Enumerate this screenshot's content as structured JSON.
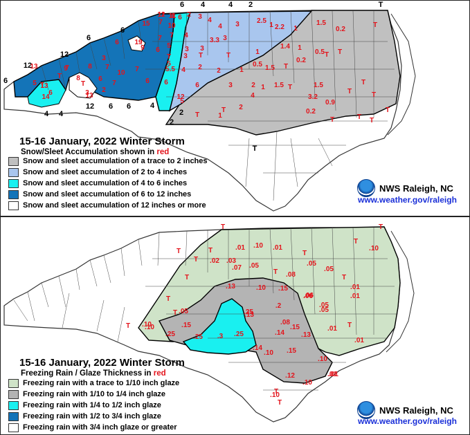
{
  "snow_panel": {
    "title": "15-16 January, 2022 Winter Storm",
    "subtitle_prefix": "Snow/Sleet Accumulation shown in",
    "subtitle_color_word": "red",
    "legend": [
      {
        "label": "Snow and sleet accumulation of a trace to 2 inches",
        "color": "#c0c0c0"
      },
      {
        "label": "Snow and sleet accumulation of 2 to 4 inches",
        "color": "#a9c6ee"
      },
      {
        "label": "Snow and sleet accumulation of 4 to 6 inches",
        "color": "#19f0f0"
      },
      {
        "label": "Snow and sleet accumulation of 6 to 12 inches",
        "color": "#1474b8"
      },
      {
        "label": "Snow and sleet accumulation of 12 inches or more",
        "color": "#ffffff"
      }
    ],
    "contour_labels": [
      "6",
      "4",
      "4",
      "2",
      "T",
      "6",
      "6",
      "12",
      "12",
      "6",
      "4",
      "4",
      "6",
      "12",
      "6",
      "4",
      "2",
      "2",
      "T"
    ],
    "values": [
      "11",
      "11",
      "6",
      "2",
      "3",
      "4",
      "4",
      "3",
      "2.5",
      "1",
      "1.5",
      "0.2",
      "T",
      "15",
      "7",
      "10",
      "19",
      "7",
      "7",
      "4",
      "3.3",
      "3",
      "2.2",
      "1",
      "6",
      "9",
      "6",
      "5",
      "3",
      "3",
      "1",
      "1.4",
      "1",
      "0.5",
      "T",
      "7",
      "3",
      "T",
      "13",
      "9",
      "8",
      "7",
      "5.5",
      "4",
      "2",
      "1",
      "T",
      "0.2",
      "T",
      "8",
      "10",
      "7",
      "6",
      "3",
      "2",
      "0.5",
      "1.5",
      "1",
      "T",
      "T",
      "13",
      "6",
      "5",
      "7",
      "6",
      "6",
      "3",
      "2",
      "1.5",
      "1.5",
      "T",
      "T",
      "T",
      "T",
      "3",
      "2",
      "13",
      "14",
      "12",
      "5",
      "4",
      "3.2",
      "0.9",
      "T",
      "T",
      "T",
      "T",
      "2",
      "1",
      "0.2",
      "T",
      "T",
      "T",
      "T",
      "T",
      "6",
      "5",
      "12",
      "4"
    ],
    "nws_label": "NWS Raleigh, NC",
    "url": "www.weather.gov/raleigh"
  },
  "ice_panel": {
    "title": "15-16 January, 2022 Winter Storm",
    "subtitle_prefix": "Freezing Rain / Glaze Thickness in",
    "subtitle_color_word": "red",
    "legend": [
      {
        "label": "Freezing rain with a trace to 1/10 inch glaze",
        "color": "#cfe3c8"
      },
      {
        "label": "Freezing rain with 1/10 to 1/4 inch glaze",
        "color": "#b4b4b4"
      },
      {
        "label": "Freezing rain with 1/4 to 1/2 inch glaze",
        "color": "#19f0f0"
      },
      {
        "label": "Freezing rain with 1/2 to 3/4 inch glaze",
        "color": "#1474b8"
      },
      {
        "label": "Freezing rain with 3/4 inch glaze or greater",
        "color": "#ffffff"
      }
    ],
    "contour_labels": [
      "T",
      "T",
      ".10",
      ".10",
      "T",
      "T",
      ".01",
      ".10"
    ],
    "values": [
      ".01",
      ".10",
      ".01",
      "T",
      "T",
      ".02",
      ".03",
      "T",
      ".05",
      ".07",
      ".05",
      ".05",
      "T",
      "T",
      ".08",
      "T",
      ".13",
      ".10",
      ".15",
      ".06",
      ".01",
      ".01",
      "T",
      ".2",
      ".06",
      ".05",
      "T",
      ".05",
      ".25",
      ".13",
      ".08",
      "T",
      ".15",
      ".14",
      ".01",
      ".25",
      ".3",
      ".25",
      ".13",
      ".01",
      ".14",
      ".10",
      ".15",
      ".10",
      ".01",
      ".12",
      ".10",
      "T",
      ".25",
      ".10",
      ".15",
      ".05",
      "T",
      "T"
    ],
    "nws_label": "NWS Raleigh, NC",
    "url": "www.weather.gov/raleigh"
  }
}
